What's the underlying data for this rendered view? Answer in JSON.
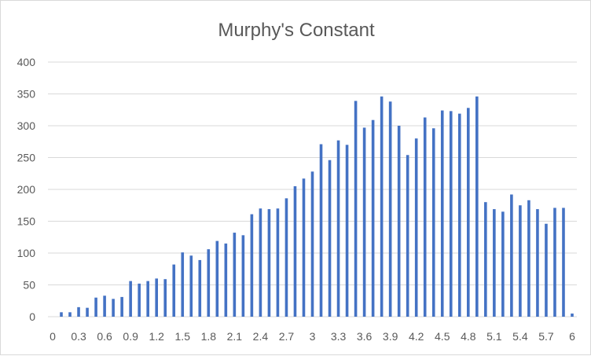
{
  "chart_data": {
    "type": "bar",
    "title": "Murphy's Constant",
    "xlabel": "",
    "ylabel": "",
    "ylim": [
      0,
      400
    ],
    "yticks": [
      "0",
      "50",
      "100",
      "150",
      "200",
      "250",
      "300",
      "350",
      "400"
    ],
    "grid": true,
    "legend": "none",
    "bar_color": "#4472c4",
    "x": [
      0,
      0.1,
      0.2,
      0.3,
      0.4,
      0.5,
      0.6,
      0.7,
      0.8,
      0.9,
      1.0,
      1.1,
      1.2,
      1.3,
      1.4,
      1.5,
      1.6,
      1.7,
      1.8,
      1.9,
      2.0,
      2.1,
      2.2,
      2.3,
      2.4,
      2.5,
      2.6,
      2.7,
      2.8,
      2.9,
      3.0,
      3.1,
      3.2,
      3.3,
      3.4,
      3.5,
      3.6,
      3.7,
      3.8,
      3.9,
      4.0,
      4.1,
      4.2,
      4.3,
      4.4,
      4.5,
      4.6,
      4.7,
      4.8,
      4.9,
      5.0,
      5.1,
      5.2,
      5.3,
      5.4,
      5.5,
      5.6,
      5.7,
      5.8,
      5.9,
      6.0
    ],
    "xtick_labels": [
      "0",
      "0.3",
      "0.6",
      "0.9",
      "1.2",
      "1.5",
      "1.8",
      "2.1",
      "2.4",
      "2.7",
      "3",
      "3.3",
      "3.6",
      "3.9",
      "4.2",
      "4.5",
      "4.8",
      "5.1",
      "5.4",
      "5.7",
      "6"
    ],
    "values": [
      0,
      7,
      7,
      15,
      14,
      30,
      33,
      28,
      31,
      56,
      52,
      56,
      60,
      59,
      82,
      101,
      96,
      89,
      106,
      119,
      115,
      132,
      128,
      161,
      170,
      169,
      170,
      186,
      205,
      217,
      228,
      271,
      246,
      277,
      270,
      339,
      297,
      309,
      346,
      338,
      300,
      254,
      280,
      313,
      296,
      324,
      323,
      319,
      328,
      346,
      180,
      169,
      165,
      192,
      175,
      183,
      169,
      146,
      171,
      171,
      5
    ]
  }
}
